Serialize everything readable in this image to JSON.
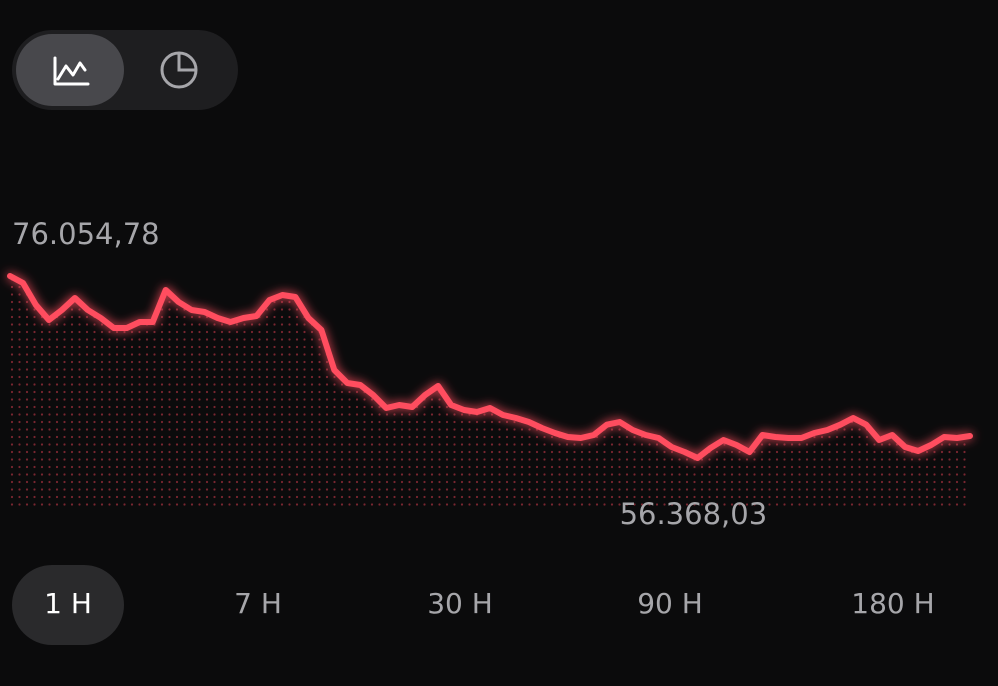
{
  "chart_data": {
    "type": "line",
    "color": "#ff4d5e",
    "high": {
      "value": 76054.78,
      "label": "76.054,78"
    },
    "low": {
      "value": 56368.03,
      "label": "56.368,03"
    },
    "values": [
      76054.78,
      75298,
      72918,
      71295,
      72377,
      73675,
      72377,
      71512,
      70430,
      70430,
      71079,
      71079,
      74541,
      73242,
      72377,
      72161,
      71512,
      71079,
      71512,
      71728,
      73459,
      73999,
      73783,
      71512,
      70214,
      65887,
      64481,
      64265,
      63183,
      61777,
      62101,
      61885,
      63183,
      64156,
      62101,
      61560,
      61344,
      61777,
      61019,
      60695,
      60262,
      59613,
      59072,
      58640,
      58532,
      58856,
      59974,
      60262,
      59397,
      58856,
      58532,
      57558,
      57017,
      56368.03,
      57450,
      58315,
      57774,
      57017,
      58856,
      58640,
      58532,
      58532,
      59072,
      59397,
      59974,
      60695,
      59974,
      58315,
      58856,
      57558,
      57125,
      57774,
      58640,
      58532,
      58748
    ]
  },
  "timeframes": {
    "options": [
      "1 H",
      "7 H",
      "30 H",
      "90 H",
      "180 H"
    ],
    "selected": 0
  }
}
